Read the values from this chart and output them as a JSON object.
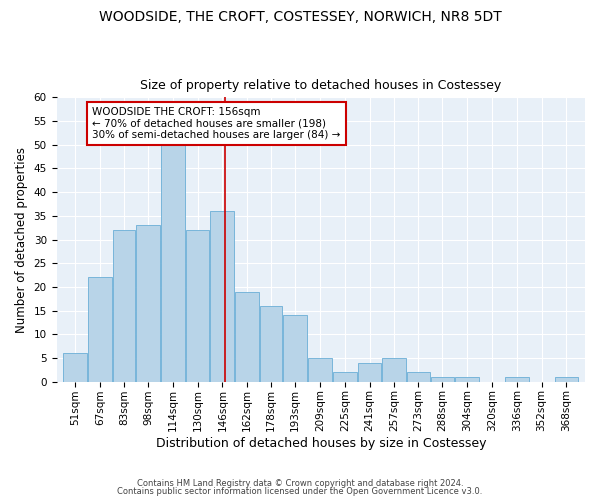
{
  "title": "WOODSIDE, THE CROFT, COSTESSEY, NORWICH, NR8 5DT",
  "subtitle": "Size of property relative to detached houses in Costessey",
  "xlabel": "Distribution of detached houses by size in Costessey",
  "ylabel": "Number of detached properties",
  "bins": [
    "51sqm",
    "67sqm",
    "83sqm",
    "98sqm",
    "114sqm",
    "130sqm",
    "146sqm",
    "162sqm",
    "178sqm",
    "193sqm",
    "209sqm",
    "225sqm",
    "241sqm",
    "257sqm",
    "273sqm",
    "288sqm",
    "304sqm",
    "320sqm",
    "336sqm",
    "352sqm",
    "368sqm"
  ],
  "values": [
    6,
    22,
    32,
    33,
    50,
    32,
    36,
    19,
    16,
    14,
    5,
    2,
    4,
    5,
    2,
    1,
    1,
    0,
    1,
    0,
    1
  ],
  "bar_color": "#b8d4e8",
  "bar_edge_color": "#6aaed6",
  "property_line_x": 156,
  "bin_edges_num": [
    51,
    67,
    83,
    98,
    114,
    130,
    146,
    162,
    178,
    193,
    209,
    225,
    241,
    257,
    273,
    288,
    304,
    320,
    336,
    352,
    368,
    384
  ],
  "annotation_text": "WOODSIDE THE CROFT: 156sqm\n← 70% of detached houses are smaller (198)\n30% of semi-detached houses are larger (84) →",
  "annotation_box_color": "#ffffff",
  "annotation_box_edge_color": "#cc0000",
  "line_color": "#cc0000",
  "footer1": "Contains HM Land Registry data © Crown copyright and database right 2024.",
  "footer2": "Contains public sector information licensed under the Open Government Licence v3.0.",
  "bg_color": "#e8f0f8",
  "fig_bg_color": "#ffffff",
  "ylim": [
    0,
    60
  ],
  "title_fontsize": 10,
  "subtitle_fontsize": 9,
  "xlabel_fontsize": 9,
  "ylabel_fontsize": 8.5,
  "tick_fontsize": 7.5,
  "annotation_fontsize": 7.5,
  "footer_fontsize": 6
}
